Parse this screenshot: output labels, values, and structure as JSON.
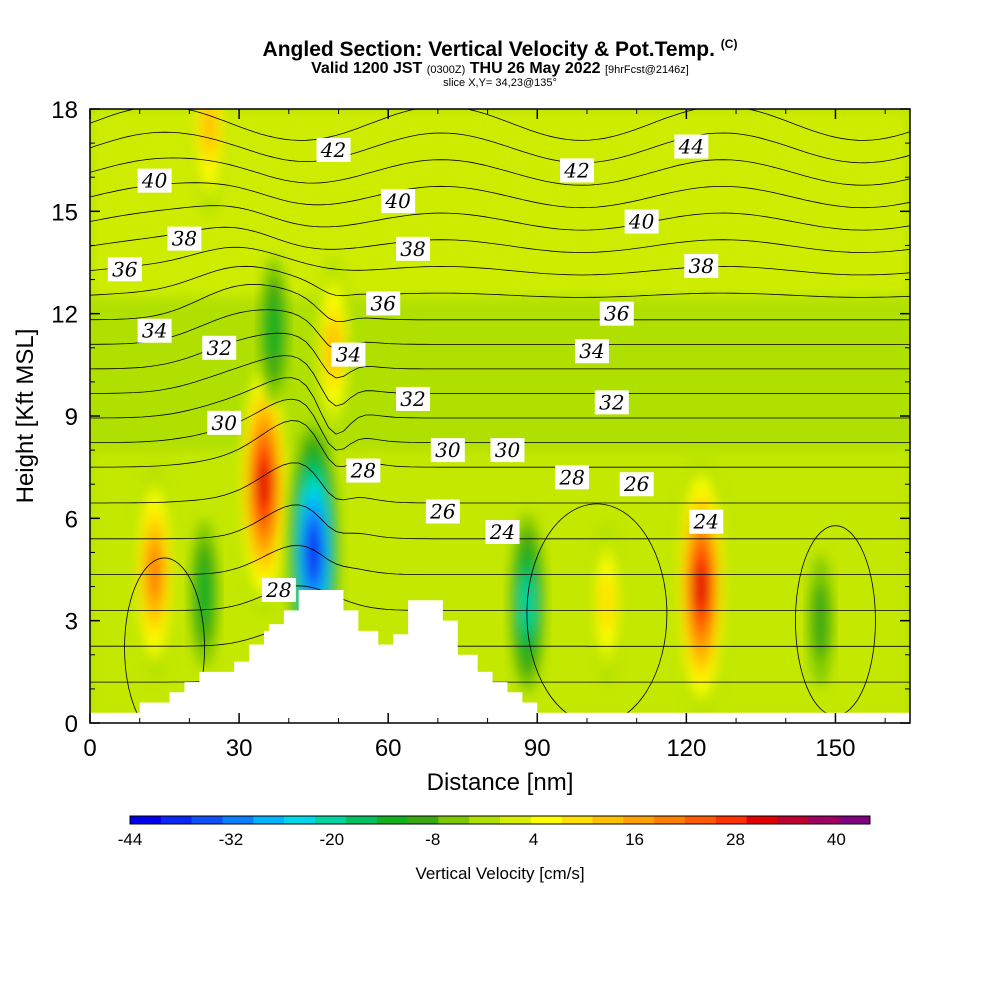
{
  "title": {
    "main": "Angled Section: Vertical Velocity & Pot.Temp.",
    "copyright": "(C)",
    "valid_prefix": "Valid 1200 JST",
    "utc": "(0300Z)",
    "valid_suffix": "THU 26 May 2022",
    "forecast": "[9hrFcst@2146z]",
    "slice": "slice X,Y= 34,23@135°"
  },
  "chart_data": {
    "type": "heatmap",
    "title": "Angled Section: Vertical Velocity & Pot.Temp.",
    "xlabel": "Distance [nm]",
    "ylabel": "Height [Kft MSL]",
    "xlim": [
      0,
      165
    ],
    "ylim": [
      0,
      18
    ],
    "xticks": [
      0,
      30,
      60,
      90,
      120,
      150
    ],
    "yticks": [
      0,
      3,
      6,
      9,
      12,
      15,
      18
    ],
    "shaded_field": {
      "name": "Vertical Velocity [cm/s]",
      "colorbar_labels": [
        -44,
        -32,
        -20,
        -8,
        4,
        16,
        28,
        40
      ],
      "colorbar_range": [
        -44,
        44
      ],
      "colorbar_step": 4,
      "colors": [
        "#0000ee",
        "#0a28f5",
        "#1050fa",
        "#0a80ff",
        "#00b4ff",
        "#00d8e8",
        "#00d4a0",
        "#00c060",
        "#10b020",
        "#3ca810",
        "#7cc800",
        "#b0e000",
        "#d8f000",
        "#ffff00",
        "#ffe000",
        "#ffc000",
        "#ffa000",
        "#ff8000",
        "#ff5a00",
        "#ff3000",
        "#e00000",
        "#c00030",
        "#a00060",
        "#800080"
      ],
      "features": [
        {
          "x": 13,
          "y": 4.4,
          "value": 28,
          "note": "updraft"
        },
        {
          "x": 23,
          "y": 3.8,
          "value": -12,
          "note": "downdraft"
        },
        {
          "x": 35,
          "y": 7.0,
          "value": 40,
          "note": "updraft core"
        },
        {
          "x": 45,
          "y": 5.0,
          "value": -40,
          "note": "downdraft core"
        },
        {
          "x": 49,
          "y": 11.0,
          "value": 20,
          "note": "updraft aloft"
        },
        {
          "x": 37,
          "y": 11.5,
          "value": -12,
          "note": "downdraft aloft"
        },
        {
          "x": 24,
          "y": 17.5,
          "value": 20,
          "note": "updraft near top"
        },
        {
          "x": 88,
          "y": 3.5,
          "value": -20,
          "note": "downdraft"
        },
        {
          "x": 104,
          "y": 3.5,
          "value": 16,
          "note": "updraft"
        },
        {
          "x": 123,
          "y": 4.0,
          "value": 40,
          "note": "updraft core"
        },
        {
          "x": 147,
          "y": 3.0,
          "value": -8,
          "note": "downdraft"
        }
      ]
    },
    "contour_field": {
      "name": "Potential Temperature",
      "interval": 1,
      "labeled_values": [
        24,
        26,
        28,
        30,
        32,
        34,
        36,
        38,
        40,
        42,
        44
      ],
      "labels": [
        {
          "text": "44",
          "x": 121,
          "y": 16.9
        },
        {
          "text": "42",
          "x": 98,
          "y": 16.2
        },
        {
          "text": "42",
          "x": 49,
          "y": 16.8
        },
        {
          "text": "40",
          "x": 13,
          "y": 15.9
        },
        {
          "text": "40",
          "x": 62,
          "y": 15.3
        },
        {
          "text": "40",
          "x": 111,
          "y": 14.7
        },
        {
          "text": "38",
          "x": 19,
          "y": 14.2
        },
        {
          "text": "38",
          "x": 65,
          "y": 13.9
        },
        {
          "text": "38",
          "x": 123,
          "y": 13.4
        },
        {
          "text": "36",
          "x": 7,
          "y": 13.3
        },
        {
          "text": "36",
          "x": 59,
          "y": 12.3
        },
        {
          "text": "36",
          "x": 106,
          "y": 12.0
        },
        {
          "text": "34",
          "x": 13,
          "y": 11.5
        },
        {
          "text": "34",
          "x": 52,
          "y": 10.8
        },
        {
          "text": "34",
          "x": 101,
          "y": 10.9
        },
        {
          "text": "32",
          "x": 26,
          "y": 11.0
        },
        {
          "text": "32",
          "x": 65,
          "y": 9.5
        },
        {
          "text": "32",
          "x": 105,
          "y": 9.4
        },
        {
          "text": "30",
          "x": 27,
          "y": 8.8
        },
        {
          "text": "30",
          "x": 72,
          "y": 8.0
        },
        {
          "text": "30",
          "x": 84,
          "y": 8.0
        },
        {
          "text": "28",
          "x": 55,
          "y": 7.4
        },
        {
          "text": "28",
          "x": 97,
          "y": 7.2
        },
        {
          "text": "28",
          "x": 38,
          "y": 3.9
        },
        {
          "text": "26",
          "x": 71,
          "y": 6.2
        },
        {
          "text": "26",
          "x": 110,
          "y": 7.0
        },
        {
          "text": "24",
          "x": 83,
          "y": 5.6
        },
        {
          "text": "24",
          "x": 124,
          "y": 5.9
        }
      ]
    },
    "terrain_profile": [
      [
        0,
        0.3
      ],
      [
        10,
        0.3
      ],
      [
        10,
        0.6
      ],
      [
        16,
        0.6
      ],
      [
        16,
        0.9
      ],
      [
        19,
        0.9
      ],
      [
        19,
        1.2
      ],
      [
        22,
        1.2
      ],
      [
        22,
        1.5
      ],
      [
        29,
        1.5
      ],
      [
        29,
        1.8
      ],
      [
        32,
        1.8
      ],
      [
        32,
        2.3
      ],
      [
        35,
        2.3
      ],
      [
        35,
        2.7
      ],
      [
        36,
        2.7
      ],
      [
        36,
        2.9
      ],
      [
        39,
        2.9
      ],
      [
        39,
        3.3
      ],
      [
        42,
        3.3
      ],
      [
        42,
        3.9
      ],
      [
        51,
        3.9
      ],
      [
        51,
        3.3
      ],
      [
        54,
        3.3
      ],
      [
        54,
        2.7
      ],
      [
        58,
        2.7
      ],
      [
        58,
        2.3
      ],
      [
        61,
        2.3
      ],
      [
        61,
        2.6
      ],
      [
        64,
        2.6
      ],
      [
        64,
        3.6
      ],
      [
        71,
        3.6
      ],
      [
        71,
        3.0
      ],
      [
        74,
        3.0
      ],
      [
        74,
        2.0
      ],
      [
        78,
        2.0
      ],
      [
        78,
        1.5
      ],
      [
        81,
        1.5
      ],
      [
        81,
        1.2
      ],
      [
        84,
        1.2
      ],
      [
        84,
        0.9
      ],
      [
        87,
        0.9
      ],
      [
        87,
        0.6
      ],
      [
        90,
        0.6
      ],
      [
        90,
        0.3
      ],
      [
        165,
        0.3
      ]
    ]
  },
  "colorbar": {
    "labels": [
      "-44",
      "-32",
      "-20",
      "-8",
      "4",
      "16",
      "28",
      "40"
    ],
    "title": "Vertical Velocity [cm/s]"
  }
}
